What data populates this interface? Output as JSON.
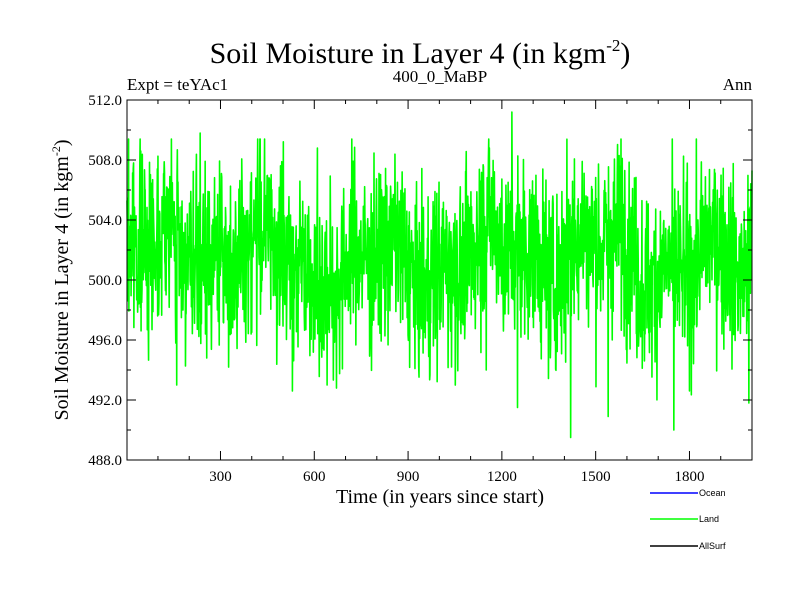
{
  "chart_data": {
    "type": "line",
    "title": "Soil Moisture in Layer 4 (in kgm",
    "title_sup": "-2",
    "title_close": ")",
    "subtitle_left": "Expt = teYAc1",
    "subtitle_center": "400_0_MaBP",
    "subtitle_right": "Ann",
    "xlabel": "Time (in years since start)",
    "ylabel": "Soil Moisture in Layer 4 (in kgm",
    "ylabel_sup": "-2",
    "ylabel_close": ")",
    "xlim": [
      1,
      2000
    ],
    "ylim": [
      488.0,
      512.0
    ],
    "xticks": [
      300,
      600,
      900,
      1200,
      1500,
      1800
    ],
    "xtick_labels": [
      "300",
      "600",
      "900",
      "1200",
      "1500",
      "1800"
    ],
    "yticks": [
      488.0,
      492.0,
      496.0,
      500.0,
      504.0,
      508.0,
      512.0
    ],
    "ytick_labels": [
      "488.0",
      "492.0",
      "496.0",
      "500.0",
      "504.0",
      "508.0",
      "512.0"
    ],
    "legend_position": "bottom-right",
    "series": [
      {
        "name": "Ocean",
        "color": "#0000ff",
        "values": []
      },
      {
        "name": "Land",
        "color": "#00ff00",
        "generator": {
          "n": 2000,
          "mean": 501.5,
          "noise_sd": 3.0,
          "seed": 7
        },
        "features": [
          {
            "x": 5,
            "y": 498.6
          },
          {
            "x": 45,
            "y": 508.6
          },
          {
            "x": 160,
            "y": 493.0
          },
          {
            "x": 235,
            "y": 509.8
          },
          {
            "x": 530,
            "y": 492.6
          },
          {
            "x": 610,
            "y": 508.8
          },
          {
            "x": 1150,
            "y": 494.0
          },
          {
            "x": 1232,
            "y": 511.2
          },
          {
            "x": 1250,
            "y": 491.5
          },
          {
            "x": 1420,
            "y": 489.5
          },
          {
            "x": 1540,
            "y": 490.9
          },
          {
            "x": 1575,
            "y": 508.3
          },
          {
            "x": 1750,
            "y": 490.0
          },
          {
            "x": 1990,
            "y": 491.8
          },
          {
            "x": 2000,
            "y": 507.3
          }
        ]
      },
      {
        "name": "AllSurf",
        "color": "#000000",
        "values": []
      }
    ]
  }
}
